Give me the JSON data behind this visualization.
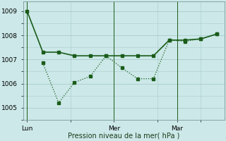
{
  "background_color": "#cce8e8",
  "grid_color": "#aacccc",
  "line_color": "#1a5c1a",
  "line1": {
    "x": [
      0,
      2,
      4,
      6,
      8,
      10,
      12,
      14,
      16,
      18,
      20,
      22,
      24
    ],
    "y": [
      1009.0,
      1007.3,
      1007.3,
      1007.15,
      1007.15,
      1007.15,
      1007.15,
      1007.15,
      1007.15,
      1007.8,
      1007.8,
      1007.85,
      1008.05
    ],
    "linewidth": 1.2,
    "markersize": 2.2
  },
  "line2": {
    "x": [
      2,
      4,
      6,
      8,
      10,
      12,
      14,
      16,
      18,
      20,
      22,
      24
    ],
    "y": [
      1006.85,
      1005.2,
      1006.05,
      1006.3,
      1007.15,
      1006.65,
      1006.2,
      1006.2,
      1007.8,
      1007.75,
      1007.85,
      1008.05
    ],
    "linewidth": 0.9,
    "markersize": 2.2
  },
  "yticks": [
    1005,
    1006,
    1007,
    1008,
    1009
  ],
  "ylim": [
    1004.5,
    1009.4
  ],
  "xlim": [
    -0.5,
    25
  ],
  "xtick_positions": [
    0,
    11,
    19
  ],
  "xtick_labels": [
    "Lun",
    "Mer",
    "Mar"
  ],
  "vlines": [
    0,
    11,
    19
  ],
  "xlabel": "Pression niveau de la mer( hPa )",
  "xlabel_fontsize": 7,
  "tick_fontsize": 6.5,
  "fig_width": 3.2,
  "fig_height": 2.0,
  "dpi": 100
}
